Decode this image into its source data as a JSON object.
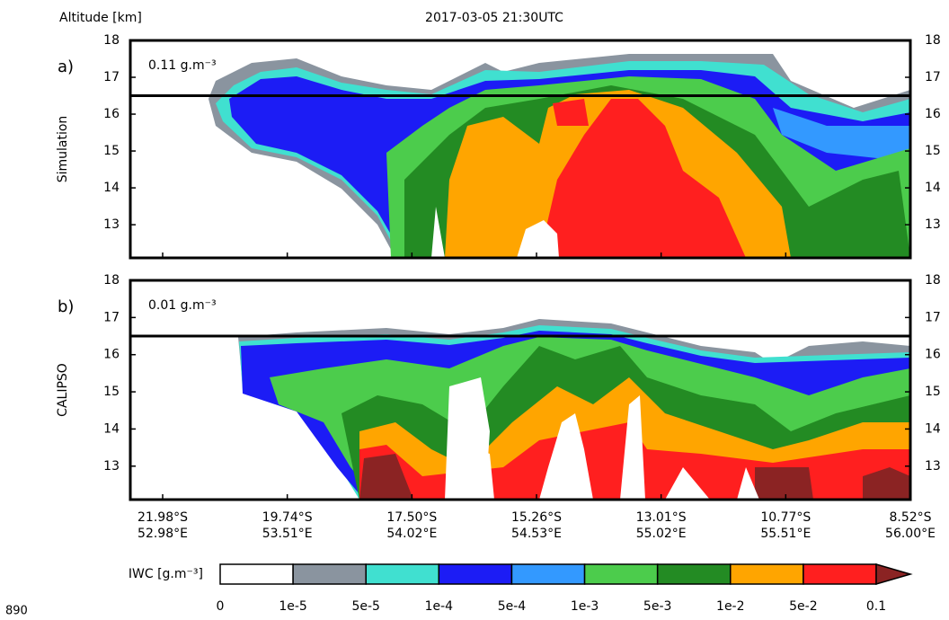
{
  "chart_data": {
    "type": "curtain",
    "title": "2017-03-05 21:30UTC",
    "y_label": "Altitude [km]",
    "ylim": [
      12.1,
      18
    ],
    "yticks": [
      13,
      14,
      15,
      16,
      17,
      18
    ],
    "reference_line": 16.5,
    "panels": [
      {
        "tag": "a)",
        "name": "Simulation",
        "annotation": "0.11 g.m⁻³"
      },
      {
        "tag": "b)",
        "name": "CALIPSO",
        "annotation": "0.01 g.m⁻³"
      }
    ],
    "x_latitudes": [
      "21.98°S",
      "19.74°S",
      "17.50°S",
      "15.26°S",
      "13.01°S",
      "10.77°S",
      "8.52°S"
    ],
    "x_longitudes": [
      "52.98°E",
      "53.51°E",
      "54.02°E",
      "54.53°E",
      "55.02°E",
      "55.51°E",
      "56.00°E"
    ],
    "colorbar": {
      "label": "IWC [g.m⁻³]",
      "levels": [
        "0",
        "1e-5",
        "5e-5",
        "1e-4",
        "5e-4",
        "1e-3",
        "5e-3",
        "1e-2",
        "5e-2",
        "0.1"
      ],
      "colors": [
        "#ffffff",
        "#8a949f",
        "#40e0d0",
        "#1c1cf5",
        "#3399ff",
        "#4ccc4c",
        "#238b23",
        "#ffa500",
        "#ff1f1f"
      ],
      "extend_color": "#8b2323"
    },
    "page_number": "890"
  }
}
